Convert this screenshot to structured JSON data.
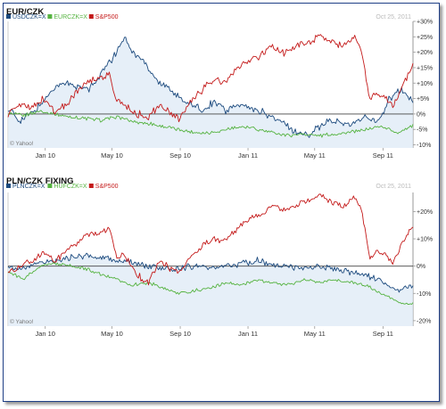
{
  "chart_data": [
    {
      "type": "line",
      "title": "EUR/CZK",
      "date": "Oct 25, 2011",
      "watermark": "© Yahoo!",
      "x_ticks": [
        "Jan 10",
        "May 10",
        "Sep 10",
        "Jan 11",
        "May 11",
        "Sep 11"
      ],
      "y_ticks": [
        "+30%",
        "+25%",
        "+20%",
        "+15%",
        "+10%",
        "+5%",
        "0%",
        "-5%",
        "-10%"
      ],
      "ylim": [
        -11,
        30
      ],
      "legend_position": "top-left",
      "colors": {
        "USDCZK=X": "#1c4a7e",
        "EURCZK=X": "#55b340",
        "S&P500": "#c41a1a"
      },
      "series": [
        {
          "name": "USDCZK=X",
          "color": "#1c4a7e",
          "x": [
            "2009-10-26",
            "2009-11-16",
            "2009-12-07",
            "2009-12-28",
            "2010-01-18",
            "2010-02-08",
            "2010-03-01",
            "2010-03-22",
            "2010-04-12",
            "2010-05-03",
            "2010-05-24",
            "2010-06-07",
            "2010-06-28",
            "2010-07-19",
            "2010-08-09",
            "2010-08-30",
            "2010-09-20",
            "2010-10-11",
            "2010-11-01",
            "2010-11-22",
            "2010-12-13",
            "2011-01-03",
            "2011-01-24",
            "2011-02-14",
            "2011-03-07",
            "2011-03-28",
            "2011-04-18",
            "2011-05-09",
            "2011-05-30",
            "2011-06-20",
            "2011-07-11",
            "2011-08-01",
            "2011-08-22",
            "2011-09-12",
            "2011-10-03",
            "2011-10-25"
          ],
          "y": [
            2,
            -2,
            0,
            4,
            9,
            10,
            9,
            8,
            13,
            18,
            25,
            20,
            17,
            11,
            9,
            5,
            3,
            1,
            4,
            1,
            3,
            2,
            1,
            -1,
            -3,
            -6,
            -7,
            -4,
            -2,
            -3,
            -3,
            -1,
            -3,
            5,
            8,
            4
          ]
        },
        {
          "name": "EURCZK=X",
          "color": "#55b340",
          "x": [
            "2009-10-26",
            "2009-11-23",
            "2009-12-21",
            "2010-01-18",
            "2010-02-15",
            "2010-03-15",
            "2010-04-12",
            "2010-05-10",
            "2010-06-07",
            "2010-07-05",
            "2010-08-02",
            "2010-08-30",
            "2010-09-27",
            "2010-10-25",
            "2010-11-22",
            "2010-12-20",
            "2011-01-17",
            "2011-02-14",
            "2011-03-14",
            "2011-04-11",
            "2011-05-09",
            "2011-06-06",
            "2011-07-04",
            "2011-08-01",
            "2011-08-29",
            "2011-09-26",
            "2011-10-25"
          ],
          "y": [
            0,
            -0.5,
            1,
            0,
            -1,
            -1.5,
            -2,
            -1,
            -2.5,
            -3,
            -4,
            -5,
            -6,
            -6,
            -5,
            -4,
            -5,
            -6,
            -7,
            -6.5,
            -7,
            -6.5,
            -6,
            -5,
            -4,
            -6,
            -4
          ]
        },
        {
          "name": "S&P500",
          "color": "#c41a1a",
          "x": [
            "2009-10-26",
            "2009-11-16",
            "2009-12-07",
            "2009-12-28",
            "2010-01-18",
            "2010-02-08",
            "2010-03-01",
            "2010-03-22",
            "2010-04-12",
            "2010-04-26",
            "2010-05-10",
            "2010-05-24",
            "2010-06-14",
            "2010-07-05",
            "2010-07-26",
            "2010-08-16",
            "2010-08-30",
            "2010-09-20",
            "2010-10-11",
            "2010-11-01",
            "2010-11-22",
            "2010-12-13",
            "2011-01-03",
            "2011-01-24",
            "2011-02-14",
            "2011-03-07",
            "2011-03-28",
            "2011-04-18",
            "2011-05-09",
            "2011-05-30",
            "2011-06-20",
            "2011-07-11",
            "2011-07-25",
            "2011-08-08",
            "2011-08-22",
            "2011-09-05",
            "2011-09-19",
            "2011-10-03",
            "2011-10-25"
          ],
          "y": [
            0,
            3,
            2,
            5,
            1,
            3,
            8,
            11,
            12,
            13,
            4,
            3,
            0,
            -1,
            3,
            0,
            -2,
            4,
            8,
            11,
            10,
            15,
            17,
            19,
            22,
            20,
            22,
            23,
            25,
            24,
            22,
            25,
            20,
            5,
            7,
            5,
            2,
            8,
            16
          ]
        }
      ]
    },
    {
      "type": "line",
      "title": "PLN/CZK FIXING",
      "date": "Oct 25, 2011",
      "watermark": "© Yahoo!",
      "x_ticks": [
        "Jan 10",
        "May 10",
        "Sep 10",
        "Jan 11",
        "May 11",
        "Sep 11"
      ],
      "y_ticks": [
        "+20%",
        "+10%",
        "0%",
        "-10%",
        "-20%"
      ],
      "ylim": [
        -22,
        27
      ],
      "legend_position": "top-left",
      "colors": {
        "PLNCZK=X": "#1c4a7e",
        "HUFCZK=X": "#55b340",
        "S&P500": "#c41a1a"
      },
      "series": [
        {
          "name": "PLNCZK=X",
          "color": "#1c4a7e",
          "x": [
            "2009-10-26",
            "2009-11-23",
            "2009-12-21",
            "2010-01-18",
            "2010-02-15",
            "2010-03-15",
            "2010-04-12",
            "2010-05-10",
            "2010-06-07",
            "2010-07-05",
            "2010-08-02",
            "2010-08-30",
            "2010-09-27",
            "2010-10-25",
            "2010-11-22",
            "2010-12-20",
            "2011-01-17",
            "2011-02-14",
            "2011-03-14",
            "2011-04-11",
            "2011-05-09",
            "2011-06-06",
            "2011-07-04",
            "2011-08-01",
            "2011-08-29",
            "2011-09-26",
            "2011-10-25"
          ],
          "y": [
            0,
            -1,
            1,
            2,
            3,
            4,
            3,
            2,
            1,
            0,
            -1,
            -1,
            0,
            -1,
            0,
            1,
            2,
            1,
            0,
            -1,
            0,
            -1,
            -2,
            -3,
            -6,
            -9,
            -7
          ]
        },
        {
          "name": "HUFCZK=X",
          "color": "#55b340",
          "x": [
            "2009-10-26",
            "2009-11-23",
            "2009-12-21",
            "2010-01-18",
            "2010-02-15",
            "2010-03-15",
            "2010-04-12",
            "2010-05-10",
            "2010-06-07",
            "2010-07-05",
            "2010-08-02",
            "2010-08-30",
            "2010-09-27",
            "2010-10-25",
            "2010-11-22",
            "2010-12-20",
            "2011-01-17",
            "2011-02-14",
            "2011-03-14",
            "2011-04-11",
            "2011-05-09",
            "2011-06-06",
            "2011-07-04",
            "2011-08-01",
            "2011-08-29",
            "2011-09-26",
            "2011-10-25"
          ],
          "y": [
            -2,
            -5,
            0,
            1,
            0,
            -1,
            -3,
            -5,
            -7,
            -6,
            -8,
            -10,
            -9,
            -8,
            -6,
            -7,
            -5,
            -6,
            -7,
            -5,
            -6,
            -5,
            -6,
            -7,
            -10,
            -13,
            -14
          ]
        },
        {
          "name": "S&P500",
          "color": "#c41a1a",
          "x": [
            "2009-10-26",
            "2009-11-16",
            "2009-12-07",
            "2009-12-28",
            "2010-01-18",
            "2010-02-08",
            "2010-03-01",
            "2010-03-22",
            "2010-04-12",
            "2010-04-26",
            "2010-05-10",
            "2010-05-24",
            "2010-06-14",
            "2010-07-05",
            "2010-07-26",
            "2010-08-16",
            "2010-08-30",
            "2010-09-20",
            "2010-10-11",
            "2010-11-01",
            "2010-11-22",
            "2010-12-13",
            "2011-01-03",
            "2011-01-24",
            "2011-02-14",
            "2011-03-07",
            "2011-03-28",
            "2011-04-18",
            "2011-05-09",
            "2011-05-30",
            "2011-06-20",
            "2011-07-11",
            "2011-07-25",
            "2011-08-08",
            "2011-08-22",
            "2011-09-05",
            "2011-09-19",
            "2011-10-03",
            "2011-10-25"
          ],
          "y": [
            -2,
            0,
            2,
            5,
            2,
            5,
            9,
            12,
            12,
            14,
            3,
            4,
            -3,
            -6,
            2,
            -1,
            -3,
            3,
            7,
            10,
            9,
            14,
            17,
            19,
            22,
            21,
            22,
            24,
            26,
            24,
            22,
            25,
            20,
            3,
            6,
            4,
            1,
            7,
            15
          ]
        }
      ]
    }
  ]
}
